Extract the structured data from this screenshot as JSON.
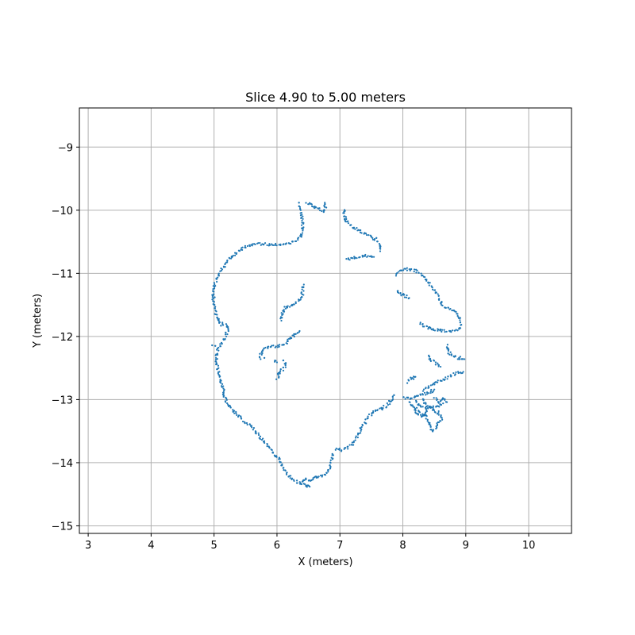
{
  "chart_data": {
    "type": "scatter",
    "title": "Slice 4.90 to 5.00 meters",
    "xlabel": "X (meters)",
    "ylabel": "Y (meters)",
    "xlim": [
      2.86,
      10.68
    ],
    "ylim": [
      -15.12,
      -8.38
    ],
    "xticks": [
      3,
      4,
      5,
      6,
      7,
      8,
      9,
      10
    ],
    "yticks": [
      -15,
      -14,
      -13,
      -12,
      -11,
      -10,
      -9
    ],
    "grid": true,
    "marker_color": "#1f77b4",
    "series": [
      {
        "segments": [
          [
            [
              6.38,
              -10.42
            ],
            [
              6.4,
              -10.33
            ],
            [
              6.41,
              -10.22
            ],
            [
              6.39,
              -10.1
            ],
            [
              6.36,
              -9.98
            ],
            [
              6.35,
              -9.88
            ]
          ],
          [
            [
              6.38,
              -10.42
            ],
            [
              6.32,
              -10.47
            ],
            [
              6.2,
              -10.52
            ],
            [
              6.05,
              -10.54
            ],
            [
              5.9,
              -10.54
            ],
            [
              5.8,
              -10.54
            ],
            [
              5.68,
              -10.53
            ],
            [
              5.55,
              -10.56
            ],
            [
              5.42,
              -10.63
            ],
            [
              5.3,
              -10.72
            ],
            [
              5.2,
              -10.82
            ],
            [
              5.12,
              -10.94
            ],
            [
              5.05,
              -11.05
            ],
            [
              5.01,
              -11.18
            ],
            [
              4.98,
              -11.3
            ],
            [
              4.99,
              -11.42
            ],
            [
              5.01,
              -11.55
            ],
            [
              5.05,
              -11.7
            ],
            [
              5.1,
              -11.8
            ],
            [
              5.18,
              -11.8
            ],
            [
              5.22,
              -11.9
            ],
            [
              5.17,
              -12.02
            ],
            [
              5.12,
              -12.12
            ],
            [
              5.06,
              -12.22
            ],
            [
              5.04,
              -12.35
            ],
            [
              5.05,
              -12.48
            ],
            [
              5.08,
              -12.6
            ],
            [
              5.11,
              -12.72
            ],
            [
              5.14,
              -12.84
            ],
            [
              5.17,
              -12.96
            ],
            [
              5.2,
              -13.06
            ],
            [
              5.28,
              -13.16
            ],
            [
              5.38,
              -13.26
            ],
            [
              5.48,
              -13.34
            ],
            [
              5.58,
              -13.42
            ],
            [
              5.66,
              -13.5
            ],
            [
              5.72,
              -13.58
            ],
            [
              5.8,
              -13.68
            ],
            [
              5.88,
              -13.76
            ],
            [
              5.95,
              -13.85
            ],
            [
              6.02,
              -13.94
            ],
            [
              6.08,
              -14.05
            ],
            [
              6.14,
              -14.15
            ],
            [
              6.22,
              -14.24
            ],
            [
              6.3,
              -14.3
            ],
            [
              6.38,
              -14.34
            ],
            [
              6.46,
              -14.36
            ],
            [
              6.52,
              -14.38
            ]
          ],
          [
            [
              6.38,
              -14.32
            ],
            [
              6.44,
              -14.26
            ],
            [
              6.5,
              -14.28
            ],
            [
              6.58,
              -14.25
            ],
            [
              6.66,
              -14.22
            ],
            [
              6.74,
              -14.21
            ],
            [
              6.8,
              -14.16
            ],
            [
              6.85,
              -14.06
            ],
            [
              6.88,
              -13.95
            ],
            [
              6.88,
              -13.86
            ]
          ],
          [
            [
              6.48,
              -9.88
            ],
            [
              6.54,
              -9.92
            ],
            [
              6.6,
              -9.96
            ],
            [
              6.7,
              -10.0
            ],
            [
              6.76,
              -10.02
            ],
            [
              6.77,
              -9.95
            ],
            [
              6.76,
              -9.88
            ]
          ],
          [
            [
              7.06,
              -10.0
            ],
            [
              7.07,
              -10.08
            ],
            [
              7.09,
              -10.16
            ],
            [
              7.16,
              -10.24
            ],
            [
              7.26,
              -10.3
            ],
            [
              7.36,
              -10.35
            ],
            [
              7.46,
              -10.4
            ],
            [
              7.56,
              -10.46
            ],
            [
              7.63,
              -10.55
            ],
            [
              7.64,
              -10.65
            ]
          ],
          [
            [
              7.1,
              -10.78
            ],
            [
              7.18,
              -10.76
            ],
            [
              7.28,
              -10.74
            ],
            [
              7.38,
              -10.73
            ],
            [
              7.46,
              -10.72
            ],
            [
              7.54,
              -10.74
            ]
          ],
          [
            [
              6.42,
              -11.18
            ],
            [
              6.41,
              -11.28
            ],
            [
              6.4,
              -11.36
            ],
            [
              6.36,
              -11.42
            ],
            [
              6.28,
              -11.48
            ],
            [
              6.2,
              -11.52
            ],
            [
              6.13,
              -11.55
            ],
            [
              6.08,
              -11.64
            ],
            [
              6.07,
              -11.75
            ]
          ],
          [
            [
              6.37,
              -11.9
            ],
            [
              6.32,
              -11.96
            ],
            [
              6.24,
              -12.0
            ],
            [
              6.18,
              -12.06
            ],
            [
              6.12,
              -12.12
            ],
            [
              6.02,
              -12.16
            ],
            [
              5.9,
              -12.16
            ],
            [
              5.82,
              -12.18
            ],
            [
              5.76,
              -12.22
            ],
            [
              5.74,
              -12.3
            ],
            [
              5.74,
              -12.36
            ]
          ],
          [
            [
              5.95,
              -12.38
            ],
            [
              6.0,
              -12.41
            ]
          ],
          [
            [
              6.0,
              -12.66
            ],
            [
              6.06,
              -12.56
            ],
            [
              6.12,
              -12.48
            ],
            [
              6.14,
              -12.42
            ]
          ],
          [
            [
              6.94,
              -13.78
            ],
            [
              7.04,
              -13.8
            ],
            [
              7.12,
              -13.76
            ],
            [
              7.2,
              -13.7
            ],
            [
              7.26,
              -13.6
            ],
            [
              7.32,
              -13.5
            ],
            [
              7.38,
              -13.4
            ],
            [
              7.44,
              -13.3
            ],
            [
              7.5,
              -13.22
            ],
            [
              7.58,
              -13.18
            ],
            [
              7.66,
              -13.14
            ],
            [
              7.74,
              -13.1
            ],
            [
              7.8,
              -13.03
            ],
            [
              7.84,
              -12.95
            ]
          ],
          [
            [
              7.9,
              -11.02
            ],
            [
              7.96,
              -10.96
            ],
            [
              8.08,
              -10.93
            ],
            [
              8.2,
              -10.96
            ],
            [
              8.3,
              -11.04
            ],
            [
              8.4,
              -11.14
            ],
            [
              8.48,
              -11.24
            ],
            [
              8.54,
              -11.34
            ],
            [
              8.6,
              -11.44
            ],
            [
              8.64,
              -11.52
            ],
            [
              8.72,
              -11.56
            ],
            [
              8.8,
              -11.58
            ],
            [
              8.88,
              -11.66
            ],
            [
              8.92,
              -11.75
            ],
            [
              8.92,
              -11.85
            ],
            [
              8.86,
              -11.91
            ],
            [
              8.74,
              -11.92
            ],
            [
              8.62,
              -11.91
            ],
            [
              8.5,
              -11.89
            ],
            [
              8.4,
              -11.86
            ],
            [
              8.32,
              -11.82
            ],
            [
              8.28,
              -11.78
            ]
          ],
          [
            [
              7.9,
              -11.3
            ],
            [
              7.96,
              -11.33
            ],
            [
              8.04,
              -11.36
            ],
            [
              8.1,
              -11.39
            ]
          ],
          [
            [
              8.7,
              -12.15
            ],
            [
              8.72,
              -12.22
            ],
            [
              8.78,
              -12.3
            ],
            [
              8.86,
              -12.34
            ],
            [
              8.92,
              -12.34
            ],
            [
              8.98,
              -12.36
            ]
          ],
          [
            [
              8.4,
              -12.3
            ],
            [
              8.46,
              -12.38
            ],
            [
              8.54,
              -12.44
            ],
            [
              8.6,
              -12.48
            ]
          ],
          [
            [
              8.08,
              -12.72
            ],
            [
              8.14,
              -12.67
            ],
            [
              8.2,
              -12.64
            ]
          ],
          [
            [
              8.34,
              -12.85
            ],
            [
              8.42,
              -12.78
            ],
            [
              8.5,
              -12.74
            ],
            [
              8.6,
              -12.7
            ],
            [
              8.7,
              -12.66
            ],
            [
              8.8,
              -12.6
            ],
            [
              8.9,
              -12.57
            ],
            [
              8.96,
              -12.56
            ]
          ],
          [
            [
              8.0,
              -12.98
            ],
            [
              8.1,
              -12.98
            ],
            [
              8.2,
              -12.96
            ],
            [
              8.28,
              -12.93
            ],
            [
              8.36,
              -12.9
            ],
            [
              8.44,
              -12.88
            ],
            [
              8.5,
              -12.84
            ]
          ],
          [
            [
              8.1,
              -13.04
            ],
            [
              8.16,
              -13.1
            ],
            [
              8.22,
              -13.16
            ],
            [
              8.3,
              -13.22
            ],
            [
              8.38,
              -13.26
            ]
          ],
          [
            [
              8.2,
              -13.02
            ],
            [
              8.26,
              -13.08
            ],
            [
              8.34,
              -13.12
            ],
            [
              8.42,
              -13.14
            ],
            [
              8.5,
              -13.12
            ],
            [
              8.58,
              -13.1
            ],
            [
              8.64,
              -13.06
            ]
          ],
          [
            [
              8.3,
              -13.0
            ],
            [
              8.36,
              -13.06
            ],
            [
              8.44,
              -13.12
            ],
            [
              8.52,
              -13.18
            ],
            [
              8.58,
              -13.22
            ],
            [
              8.62,
              -13.28
            ],
            [
              8.6,
              -13.34
            ]
          ],
          [
            [
              8.38,
              -13.3
            ],
            [
              8.42,
              -13.38
            ],
            [
              8.44,
              -13.46
            ],
            [
              8.48,
              -13.5
            ],
            [
              8.54,
              -13.44
            ],
            [
              8.56,
              -13.36
            ]
          ],
          [
            [
              8.2,
              -13.18
            ],
            [
              8.24,
              -13.24
            ],
            [
              8.3,
              -13.28
            ],
            [
              8.36,
              -13.22
            ],
            [
              8.4,
              -13.14
            ]
          ],
          [
            [
              8.5,
              -12.98
            ],
            [
              8.56,
              -13.04
            ],
            [
              8.6,
              -13.0
            ],
            [
              8.66,
              -12.98
            ],
            [
              8.7,
              -13.04
            ]
          ]
        ],
        "points": [
          [
            6.1,
            -12.38
          ],
          [
            6.03,
            -12.64
          ],
          [
            6.06,
            -12.52
          ],
          [
            7.86,
            -12.93
          ],
          [
            7.78,
            -13.02
          ],
          [
            8.7,
            -12.17
          ],
          [
            8.72,
            -12.27
          ],
          [
            8.6,
            -11.89
          ],
          [
            8.44,
            -11.87
          ],
          [
            4.97,
            -12.14
          ],
          [
            5.02,
            -12.15
          ],
          [
            5.01,
            -11.38
          ],
          [
            5.0,
            -11.45
          ],
          [
            4.98,
            -11.35
          ],
          [
            5.06,
            -11.72
          ],
          [
            5.11,
            -11.83
          ],
          [
            5.22,
            -11.85
          ],
          [
            6.08,
            -11.66
          ],
          [
            6.11,
            -11.58
          ],
          [
            6.4,
            -11.22
          ],
          [
            6.75,
            -9.93
          ],
          [
            6.54,
            -9.9
          ],
          [
            7.58,
            -10.44
          ],
          [
            7.1,
            -10.14
          ],
          [
            8.02,
            -11.34
          ],
          [
            8.44,
            -12.38
          ],
          [
            8.15,
            -12.66
          ],
          [
            8.9,
            -12.36
          ],
          [
            7.92,
            -11.28
          ],
          [
            5.8,
            -12.34
          ],
          [
            6.48,
            -14.36
          ],
          [
            6.42,
            -14.28
          ]
        ]
      }
    ]
  }
}
